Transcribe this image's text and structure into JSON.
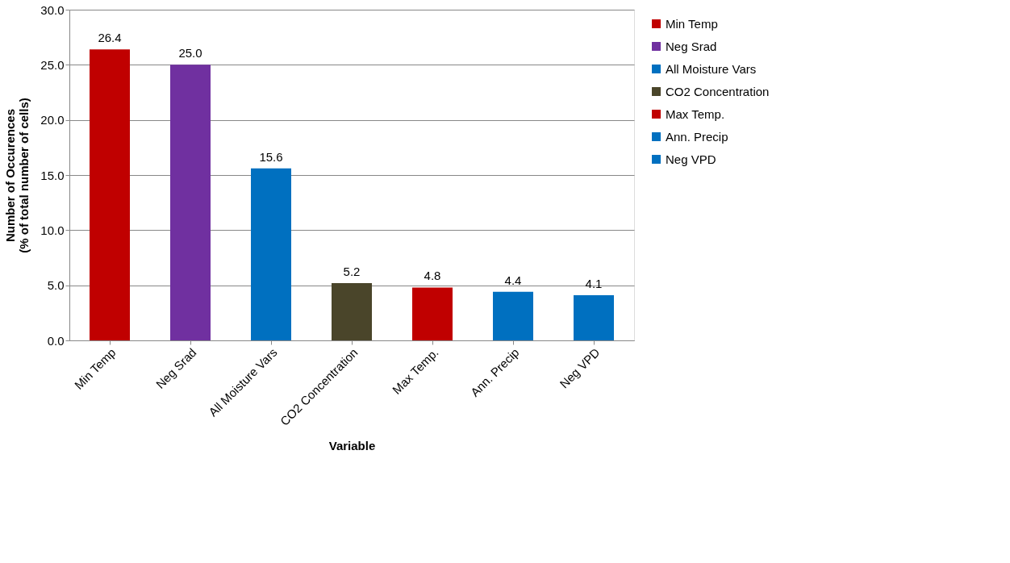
{
  "chart_data": {
    "type": "bar",
    "xlabel": "Variable",
    "ylabel": "Number of Occurences\n(% of total number of cells)",
    "categories": [
      "Min Temp",
      "Neg Srad",
      "All Moisture Vars",
      "CO2 Concentration",
      "Max Temp.",
      "Ann. Precip",
      "Neg VPD"
    ],
    "series": [
      {
        "name": "Min Temp",
        "color": "#c00000",
        "values": [
          26.4,
          null,
          null,
          null,
          null,
          null,
          null
        ],
        "value_labels": [
          "26.4",
          null,
          null,
          null,
          null,
          null,
          null
        ]
      },
      {
        "name": "Neg Srad",
        "color": "#7030a0",
        "values": [
          null,
          25.0,
          null,
          null,
          null,
          null,
          null
        ],
        "value_labels": [
          null,
          "25.0",
          null,
          null,
          null,
          null,
          null
        ]
      },
      {
        "name": "All Moisture Vars",
        "color": "#0070c0",
        "values": [
          null,
          null,
          15.6,
          null,
          null,
          null,
          null
        ],
        "value_labels": [
          null,
          null,
          "15.6",
          null,
          null,
          null,
          null
        ]
      },
      {
        "name": "CO2 Concentration",
        "color": "#4a452a",
        "values": [
          null,
          null,
          null,
          5.2,
          null,
          null,
          null
        ],
        "value_labels": [
          null,
          null,
          null,
          "5.2",
          null,
          null,
          null
        ]
      },
      {
        "name": "Max Temp.",
        "color": "#c00000",
        "values": [
          null,
          null,
          null,
          null,
          4.8,
          null,
          null
        ],
        "value_labels": [
          null,
          null,
          null,
          null,
          "4.8",
          null,
          null
        ]
      },
      {
        "name": "Ann. Precip",
        "color": "#0070c0",
        "values": [
          null,
          null,
          null,
          null,
          null,
          4.4,
          null
        ],
        "value_labels": [
          null,
          null,
          null,
          null,
          null,
          "4.4",
          null
        ]
      },
      {
        "name": "Neg VPD",
        "color": "#0070c0",
        "values": [
          null,
          null,
          null,
          null,
          null,
          null,
          4.1
        ],
        "value_labels": [
          null,
          null,
          null,
          null,
          null,
          null,
          "4.1"
        ]
      }
    ],
    "ylim": [
      0,
      30
    ],
    "yticks": [
      {
        "value": 0,
        "label": "0.0"
      },
      {
        "value": 5,
        "label": "5.0"
      },
      {
        "value": 10,
        "label": "10.0"
      },
      {
        "value": 15,
        "label": "15.0"
      },
      {
        "value": 20,
        "label": "20.0"
      },
      {
        "value": 25,
        "label": "25.0"
      },
      {
        "value": 30,
        "label": "30.0"
      }
    ],
    "grid": "y",
    "legend": "right"
  }
}
